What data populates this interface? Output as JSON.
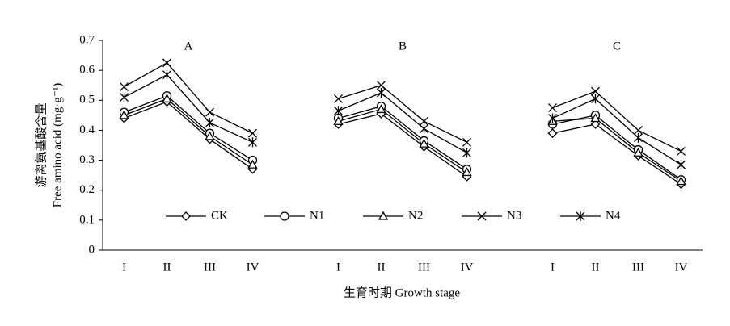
{
  "chart_data": {
    "type": "line",
    "ylabel": [
      "游离氨基酸含量",
      "Free amino acid (mg·g⁻¹)"
    ],
    "xlabel": "生育时期 Growth stage",
    "annotations": [
      "A",
      "B",
      "C"
    ],
    "categories": [
      "I",
      "II",
      "III",
      "IV",
      null,
      "I",
      "II",
      "III",
      "IV",
      null,
      "I",
      "II",
      "III",
      "IV"
    ],
    "series": [
      {
        "name": "CK",
        "color": "#000000",
        "marker": "diamond",
        "values": [
          0.44,
          0.495,
          0.37,
          0.27,
          null,
          0.42,
          0.455,
          0.345,
          0.245,
          null,
          0.39,
          0.42,
          0.315,
          0.22
        ]
      },
      {
        "name": "N1",
        "color": "#000000",
        "marker": "circle",
        "values": [
          0.46,
          0.515,
          0.39,
          0.3,
          null,
          0.44,
          0.48,
          0.365,
          0.27,
          null,
          0.42,
          0.45,
          0.335,
          0.235
        ]
      },
      {
        "name": "N2",
        "color": "#000000",
        "marker": "triangle",
        "values": [
          0.45,
          0.505,
          0.38,
          0.285,
          null,
          0.43,
          0.47,
          0.355,
          0.26,
          null,
          0.43,
          0.44,
          0.325,
          0.23
        ]
      },
      {
        "name": "N3",
        "color": "#000000",
        "marker": "x",
        "values": [
          0.545,
          0.625,
          0.46,
          0.39,
          null,
          0.505,
          0.55,
          0.43,
          0.36,
          null,
          0.475,
          0.53,
          0.4,
          0.33
        ]
      },
      {
        "name": "N4",
        "color": "#000000",
        "marker": "asterisk",
        "values": [
          0.51,
          0.585,
          0.425,
          0.36,
          null,
          0.465,
          0.525,
          0.405,
          0.325,
          null,
          0.44,
          0.505,
          0.375,
          0.285
        ]
      }
    ],
    "ylim": [
      0,
      0.7
    ],
    "yticks": [
      0,
      0.1,
      0.2,
      0.3,
      0.4,
      0.5,
      0.6,
      0.7
    ],
    "grid": false,
    "legend": "bottom"
  }
}
